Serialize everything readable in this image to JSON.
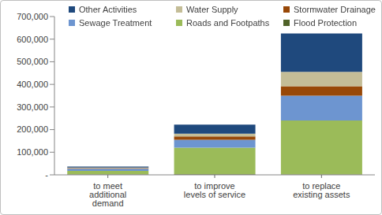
{
  "chart_data": {
    "type": "bar",
    "stacked": true,
    "legend": "top",
    "grid": false,
    "categories": [
      "to meet additional demand",
      "to improve levels of service",
      "to replace existing assets"
    ],
    "series": [
      {
        "name": "Flood Protection",
        "color": "#4F6228",
        "values": [
          2000,
          3000,
          2000
        ]
      },
      {
        "name": "Roads and Footpaths",
        "color": "#9BBB59",
        "values": [
          15000,
          117000,
          238000
        ]
      },
      {
        "name": "Sewage Treatment",
        "color": "#6D95D0",
        "values": [
          10000,
          35000,
          110000
        ]
      },
      {
        "name": "Stormwater Drainage",
        "color": "#984807",
        "values": [
          3000,
          15000,
          42000
        ]
      },
      {
        "name": "Water Supply",
        "color": "#C4BD97",
        "values": [
          2000,
          12000,
          63000
        ]
      },
      {
        "name": "Other Activities",
        "color": "#1F497D",
        "values": [
          5000,
          40000,
          170000
        ]
      }
    ],
    "ylim": [
      0,
      700000
    ],
    "yticks": [
      {
        "value": 0,
        "label": "-"
      },
      {
        "value": 100000,
        "label": "100,000"
      },
      {
        "value": 200000,
        "label": "200,000"
      },
      {
        "value": 300000,
        "label": "300,000"
      },
      {
        "value": 400000,
        "label": "400,000"
      },
      {
        "value": 500000,
        "label": "500,000"
      },
      {
        "value": 600000,
        "label": "600,000"
      },
      {
        "value": 700000,
        "label": "700,000"
      }
    ]
  }
}
